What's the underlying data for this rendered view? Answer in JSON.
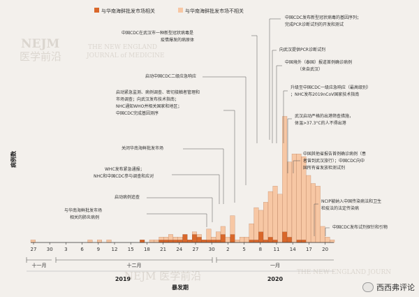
{
  "legend": [
    {
      "label": "与华南海鲜批发市场相关",
      "color": "#d9672a"
    },
    {
      "label": "与华南海鲜批发市场不相关",
      "color": "#f7c7a4"
    }
  ],
  "watermarks": {
    "nejm_left": "NEJM",
    "nejm_left_cn": "医学前沿",
    "nejm_top_right_1": "THE NEW ENGLAND",
    "nejm_top_right_2": "JOURNAL of MEDICINE",
    "nejm_bottom": "NEJM 医学前沿",
    "nejm_bottom_right": "THE NEW ENGLAND JOURN"
  },
  "brand_label": "西西弗评论",
  "chart_data": {
    "type": "bar",
    "stacked": true,
    "xlabel": "暴发期",
    "ylabel": "病例数",
    "ylim": [
      0,
      50
    ],
    "tick_labels": [
      "27",
      "30",
      "3",
      "6",
      "9",
      "12",
      "15",
      "18",
      "21",
      "24",
      "27",
      "30",
      "2",
      "5",
      "8",
      "11",
      "14",
      "17",
      "20"
    ],
    "month_labels": [
      "十一月",
      "十二月",
      "一月"
    ],
    "year_labels": [
      "2019",
      "2020"
    ],
    "series": [
      {
        "name": "与华南海鲜批发市场相关",
        "color": "#d9672a",
        "values": [
          0,
          0,
          0,
          0,
          0,
          0,
          0,
          0,
          0,
          0,
          0,
          0,
          0,
          0,
          0,
          0,
          0,
          0,
          0,
          0,
          0,
          0,
          0,
          1,
          0,
          0,
          0,
          1,
          1,
          1,
          1,
          1,
          3,
          1,
          3,
          2,
          1,
          1,
          1,
          1,
          3,
          0,
          3,
          0,
          0,
          0,
          1,
          1,
          4,
          1,
          2,
          1,
          0,
          4,
          2,
          0,
          1,
          1,
          0,
          0,
          0,
          0,
          0,
          0
        ]
      },
      {
        "name": "与华南海鲜批发市场不相关",
        "color": "#f7c7a4",
        "values": [
          1,
          0,
          0,
          0,
          0,
          0,
          0,
          0,
          0,
          0,
          0,
          0,
          1,
          0,
          1,
          0,
          1,
          0,
          0,
          0,
          0,
          0,
          0,
          0,
          0,
          1,
          1,
          1,
          1,
          2,
          1,
          1,
          0,
          0,
          1,
          1,
          0,
          4,
          1,
          3,
          3,
          2,
          7,
          1,
          2,
          2,
          6,
          12,
          8,
          14,
          17,
          20,
          18,
          43,
          28,
          33,
          32,
          31,
          25,
          22,
          21,
          6,
          2,
          1
        ]
      }
    ],
    "annotations": [
      "中国CDC发布新型冠状病毒的基因序列;完成PCR诊断试剂的开发和测试",
      "中国CDC在武汉市一种新型冠状病毒是疫情爆发的病原体",
      "向武汉提供PCR诊断试剂",
      "中国境外（泰国）报道首例确诊病例（来自武汉）",
      "启动中国CDC二级应急响应",
      "升级至中国CDC一级应急响应（最高级别）；NHC发布2019nCoV国家技术指南",
      "启动紧急监测、病例调查、密切接触者管理和市场调查；向武汉发布技术指南；NHC通知WHO并相关国家和地区；中国CDC完成基因测序",
      "武汉启动严格的出港筛查措施，体温>37.3°C的人不得出港",
      "关闭华南海鲜批发市场",
      "中国其他省报告首例确诊病例（患者曾到武汉旅行）；中国CDC向中国所有省发放检测试剂",
      "WHC发布紧急通报；NHC和中国CDC参与调查和应对",
      "启动病例追查",
      "与华南海鲜批发市场相关的肺炎病例",
      "NCIP被纳入中国传染病法和卫生检疫法的法定传染病",
      "中国CDC发布试剂探针和引物"
    ]
  }
}
